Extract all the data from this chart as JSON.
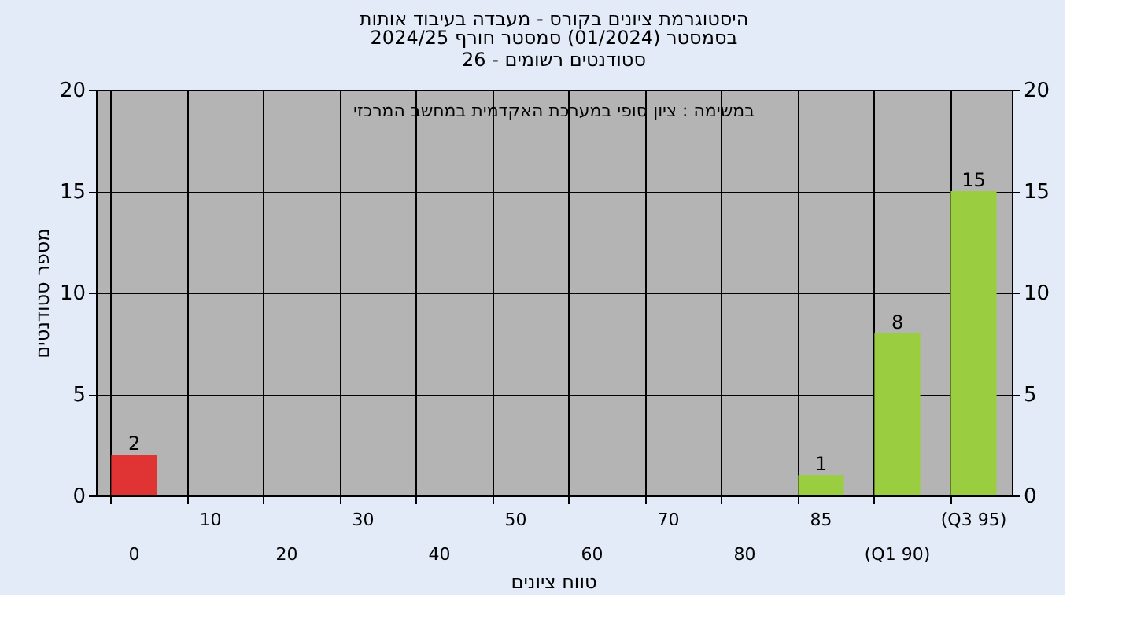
{
  "chart_data": {
    "type": "bar",
    "title": "היסטוגרמת ציונים בקורס - מעבדה בעיבוד אותות",
    "subtitle": "בסמסטר  (01/2024)  סמסטר חורף 2024/25\nסטודנטים רשומים - 26",
    "xlabel": "טווח ציונים",
    "ylabel": "מספר סטודנטים",
    "annotations": [
      "במשימה : ציון סופי במערכת האקדמית במחשב המרכזי"
    ],
    "categories": [
      "0",
      "10",
      "20",
      "30",
      "40",
      "50",
      "60",
      "70",
      "80",
      "85",
      "(Q1 90)",
      "(Q3 95)"
    ],
    "values": [
      2,
      0,
      0,
      0,
      0,
      0,
      0,
      0,
      0,
      1,
      8,
      15
    ],
    "colors": [
      "#e03434",
      "#9acd40",
      "#9acd40",
      "#9acd40",
      "#9acd40",
      "#9acd40",
      "#9acd40",
      "#9acd40",
      "#9acd40",
      "#9acd40",
      "#9acd40",
      "#9acd40"
    ],
    "value_labels": [
      "2",
      null,
      null,
      null,
      null,
      null,
      null,
      null,
      null,
      "1",
      "8",
      "15"
    ],
    "ylim": [
      0,
      20
    ],
    "yticks": [
      0,
      5,
      10,
      15,
      20
    ],
    "y2lim": [
      0,
      20
    ],
    "y2ticks": [
      0,
      5,
      10,
      15,
      20
    ],
    "grid": true
  }
}
